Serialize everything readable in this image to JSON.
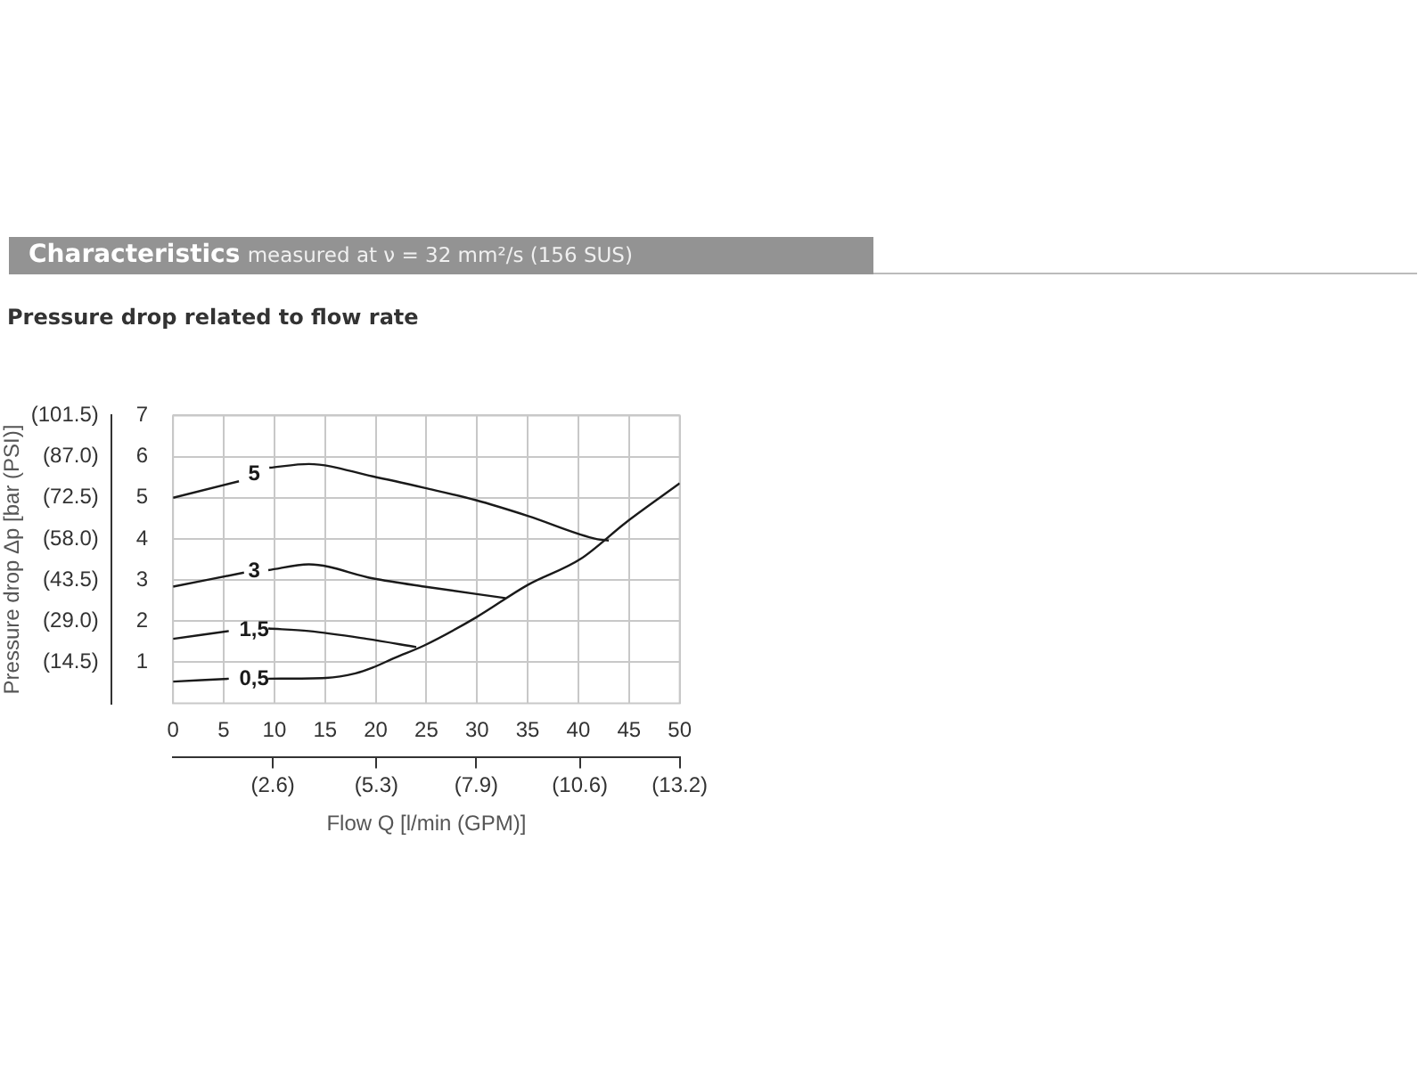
{
  "chart_data": {
    "type": "line",
    "title": "Characteristics",
    "subtitle": "measured at ν = 32 mm²/s (156 SUS)",
    "xlabel": "Flow Q [l/min (GPM)]",
    "y2label": "Pressure drop Δp [bar (PSI)]",
    "annotations": [
      "Pressure drop related to flow rate"
    ],
    "series": [
      {
        "name": "5",
        "color": "#1a1a1a",
        "x": [
          0,
          6.5,
          8,
          9.5,
          13.4,
          19.7,
          24.8,
          29.9,
          35,
          41.9,
          43
        ],
        "values": [
          5.0,
          5.4,
          null,
          5.73,
          5.82,
          5.52,
          5.24,
          4.94,
          4.56,
          3.99,
          3.96
        ]
      },
      {
        "name": "3",
        "color": "#1a1a1a",
        "x": [
          0,
          7,
          8,
          9.4,
          13.4,
          19.7,
          24.8,
          32.8
        ],
        "values": [
          2.84,
          3.18,
          null,
          3.24,
          3.38,
          3.04,
          2.84,
          2.56
        ]
      },
      {
        "name": "1,5",
        "color": "#1a1a1a",
        "x": [
          0,
          5.5,
          8,
          9.4,
          13.4,
          19.1,
          24
        ],
        "values": [
          1.57,
          1.76,
          null,
          1.82,
          1.76,
          1.57,
          1.37
        ]
      },
      {
        "name": "0,5",
        "color": "#1a1a1a",
        "x": [
          0,
          5.5,
          8,
          9.4,
          15.1,
          18,
          19.7,
          21.9,
          24.8,
          29.9,
          35,
          40.2,
          44.7,
          50
        ],
        "values": [
          0.53,
          0.6,
          null,
          0.6,
          0.62,
          0.73,
          0.87,
          1.11,
          1.41,
          2.09,
          2.88,
          3.51,
          4.4,
          5.35
        ]
      }
    ],
    "xlim": [
      0,
      50
    ],
    "xticks": [
      0,
      5,
      10,
      15,
      20,
      25,
      30,
      35,
      40,
      45,
      50
    ],
    "x2lim": [
      0,
      13.2
    ],
    "x2ticks": [
      {
        "value": 2.6,
        "label": "(2.6)"
      },
      {
        "value": 5.3,
        "label": "(5.3)"
      },
      {
        "value": 7.9,
        "label": "(7.9)"
      },
      {
        "value": 10.6,
        "label": "(10.6)"
      },
      {
        "value": 13.2,
        "label": "(13.2)"
      }
    ],
    "ylim": [
      0,
      7
    ],
    "yticks": [
      1,
      2,
      3,
      4,
      5,
      6,
      7
    ],
    "y2lim": [
      0,
      101.5
    ],
    "y2ticks": [
      {
        "value": 14.5,
        "label": "(14.5)"
      },
      {
        "value": 29,
        "label": "(29.0)"
      },
      {
        "value": 43.5,
        "label": "(43.5)"
      },
      {
        "value": 58,
        "label": "(58.0)"
      },
      {
        "value": 72.5,
        "label": "(72.5)"
      },
      {
        "value": 87,
        "label": "(87.0)"
      },
      {
        "value": 101.5,
        "label": "(101.5)"
      }
    ],
    "grid": true,
    "legend": false,
    "marker": "none",
    "line_style": "solid"
  }
}
